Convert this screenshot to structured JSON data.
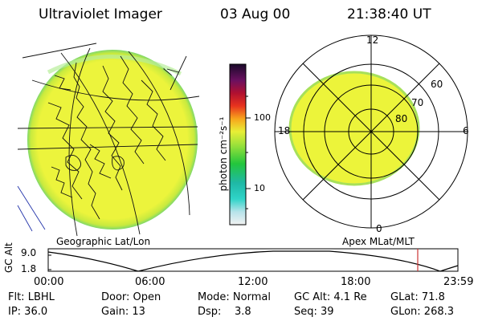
{
  "header": {
    "title": "Ultraviolet Imager",
    "date": "03 Aug 00",
    "time": "21:38:40 UT"
  },
  "colorbar": {
    "unit_label": "photon cm⁻²s⁻¹",
    "tick_100": "100",
    "tick_10": "10"
  },
  "panels": {
    "left_caption": "Geographic Lat/Lon",
    "right_caption": "Apex MLat/MLT"
  },
  "polar_labels": {
    "mlt_12": "12",
    "mlt_18": "18",
    "mlt_6": "6",
    "mlt_0": "0",
    "lat_60": "60",
    "lat_70": "70",
    "lat_80": "80"
  },
  "altitude_plot": {
    "ylabel": "GC Alt",
    "ytick_top": "9.0",
    "ytick_bottom": "1.8",
    "xticks": [
      "00:00",
      "06:00",
      "12:00",
      "18:00",
      "23:59"
    ]
  },
  "info": {
    "row1": {
      "flt": "Flt: LBHL",
      "door": "Door: Open",
      "mode": "Mode: Normal",
      "gcalt": "GC Alt: 4.1 Re",
      "glat": "GLat: 71.8"
    },
    "row2": {
      "ip": "IP: 36.0",
      "gain": "Gain: 13",
      "dsp": "Dsp:    3.8",
      "seq": "Seq: 39",
      "glon": "GLon: 268.3"
    }
  },
  "colors": {
    "aurora_fill": "#e8f23a",
    "aurora_rim": "#9be04a",
    "marker_line": "#cc3333",
    "border_lines": "#2233aa"
  }
}
